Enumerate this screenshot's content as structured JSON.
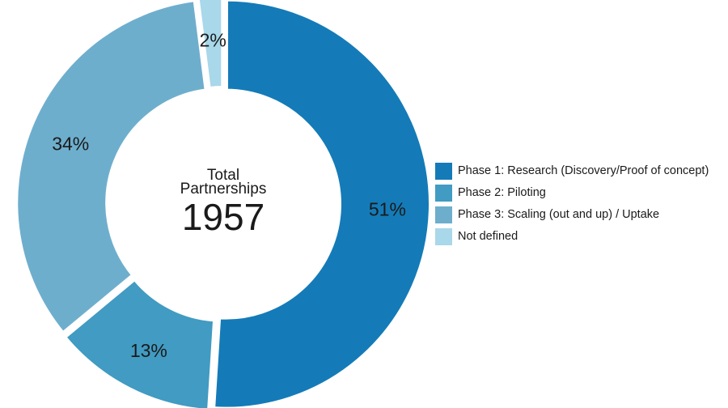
{
  "chart_data": {
    "type": "pie",
    "variant": "donut",
    "center": {
      "label_line1": "Total",
      "label_line2": "Partnerships",
      "value": "1957"
    },
    "slices": [
      {
        "name": "Phase 1: Research (Discovery/Proof of concept)",
        "value": 51,
        "label": "51%",
        "color": "#147bb8"
      },
      {
        "name": "Phase 2: Piloting",
        "value": 13,
        "label": "13%",
        "color": "#419bc2"
      },
      {
        "name": "Phase 3: Scaling (out and up) / Uptake",
        "value": 34,
        "label": "34%",
        "color": "#6eaecd"
      },
      {
        "name": "Not defined",
        "value": 2,
        "label": "2%",
        "color": "#a8d8ea"
      }
    ],
    "legend_placement": "right"
  }
}
